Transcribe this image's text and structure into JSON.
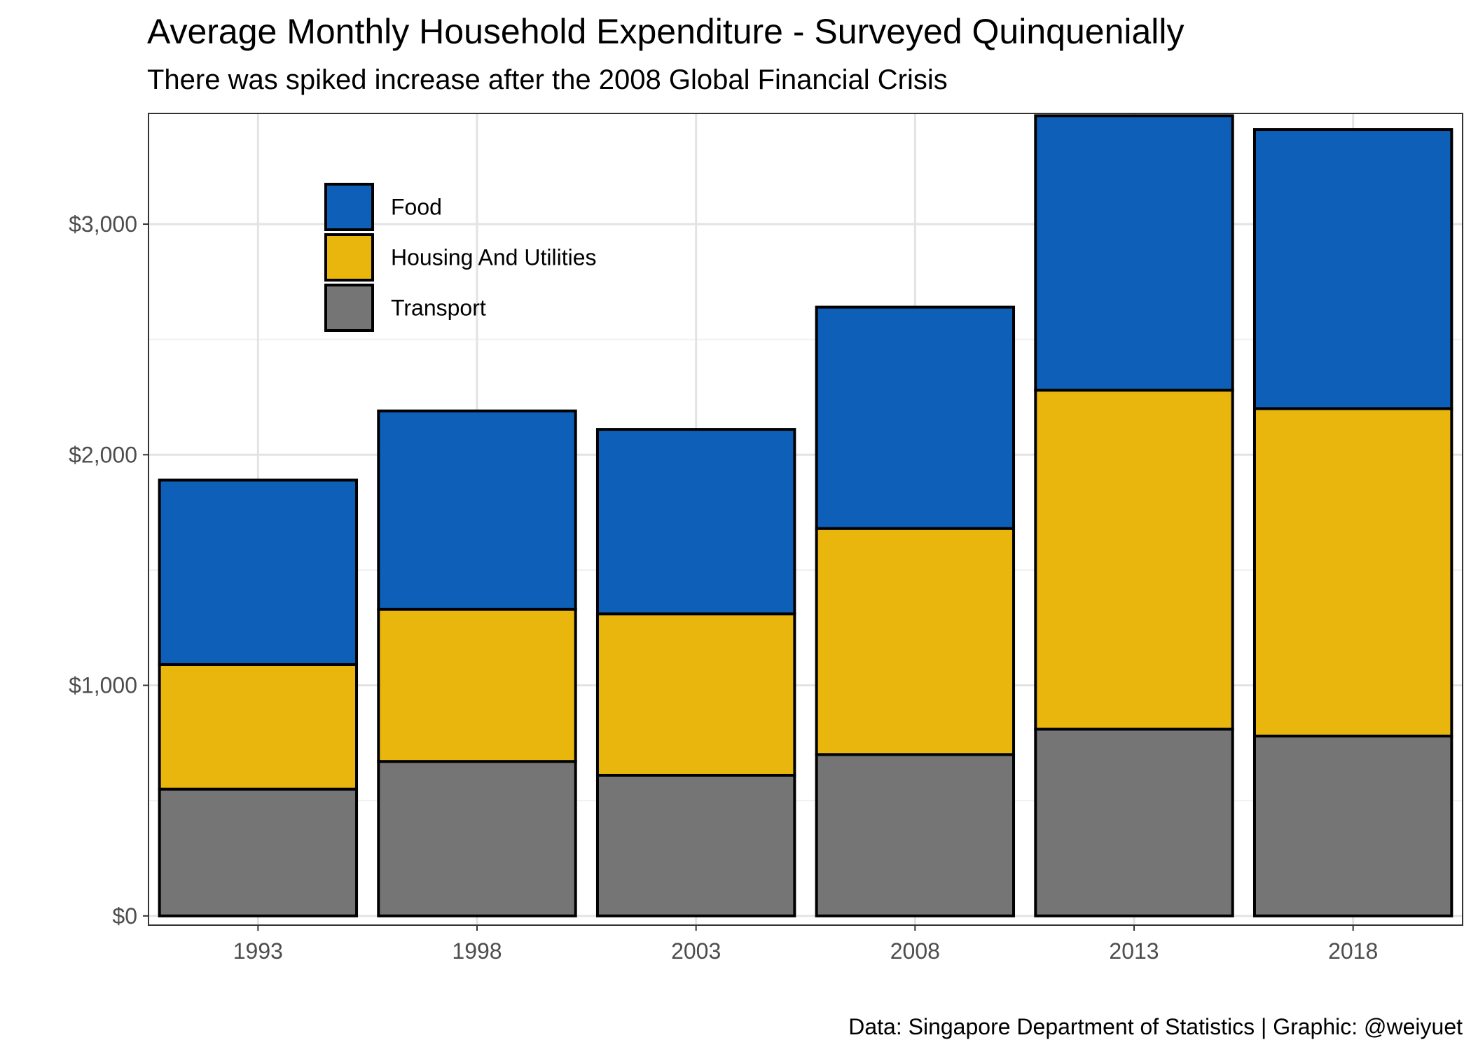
{
  "chart_data": {
    "type": "bar",
    "stacked": true,
    "title": "Average Monthly Household Expenditure - Surveyed Quinquenially",
    "subtitle": "There was spiked increase after the 2008 Global Financial Crisis",
    "caption": "Data: Singapore Department of Statistics | Graphic: @weiyuet",
    "xlabel": "",
    "ylabel": "",
    "categories": [
      "1993",
      "1998",
      "2003",
      "2008",
      "2013",
      "2018"
    ],
    "series": [
      {
        "name": "Transport",
        "color": "#757575",
        "values": [
          550,
          670,
          610,
          700,
          810,
          780
        ]
      },
      {
        "name": "Housing And Utilities",
        "color": "#E8B60C",
        "values": [
          540,
          660,
          700,
          980,
          1470,
          1420
        ]
      },
      {
        "name": "Food",
        "color": "#0E5FB7",
        "values": [
          800,
          860,
          800,
          960,
          1190,
          1210
        ]
      }
    ],
    "legend_order": [
      "Food",
      "Housing And Utilities",
      "Transport"
    ],
    "ylim": [
      -40,
      3480
    ],
    "yticks": [
      0,
      1000,
      2000,
      3000
    ],
    "ytick_labels": [
      "$0",
      "$1,000",
      "$2,000",
      "$3,000"
    ],
    "grid": true,
    "legend_position": "top-left inside plot",
    "bar_outline_color": "#000000"
  }
}
